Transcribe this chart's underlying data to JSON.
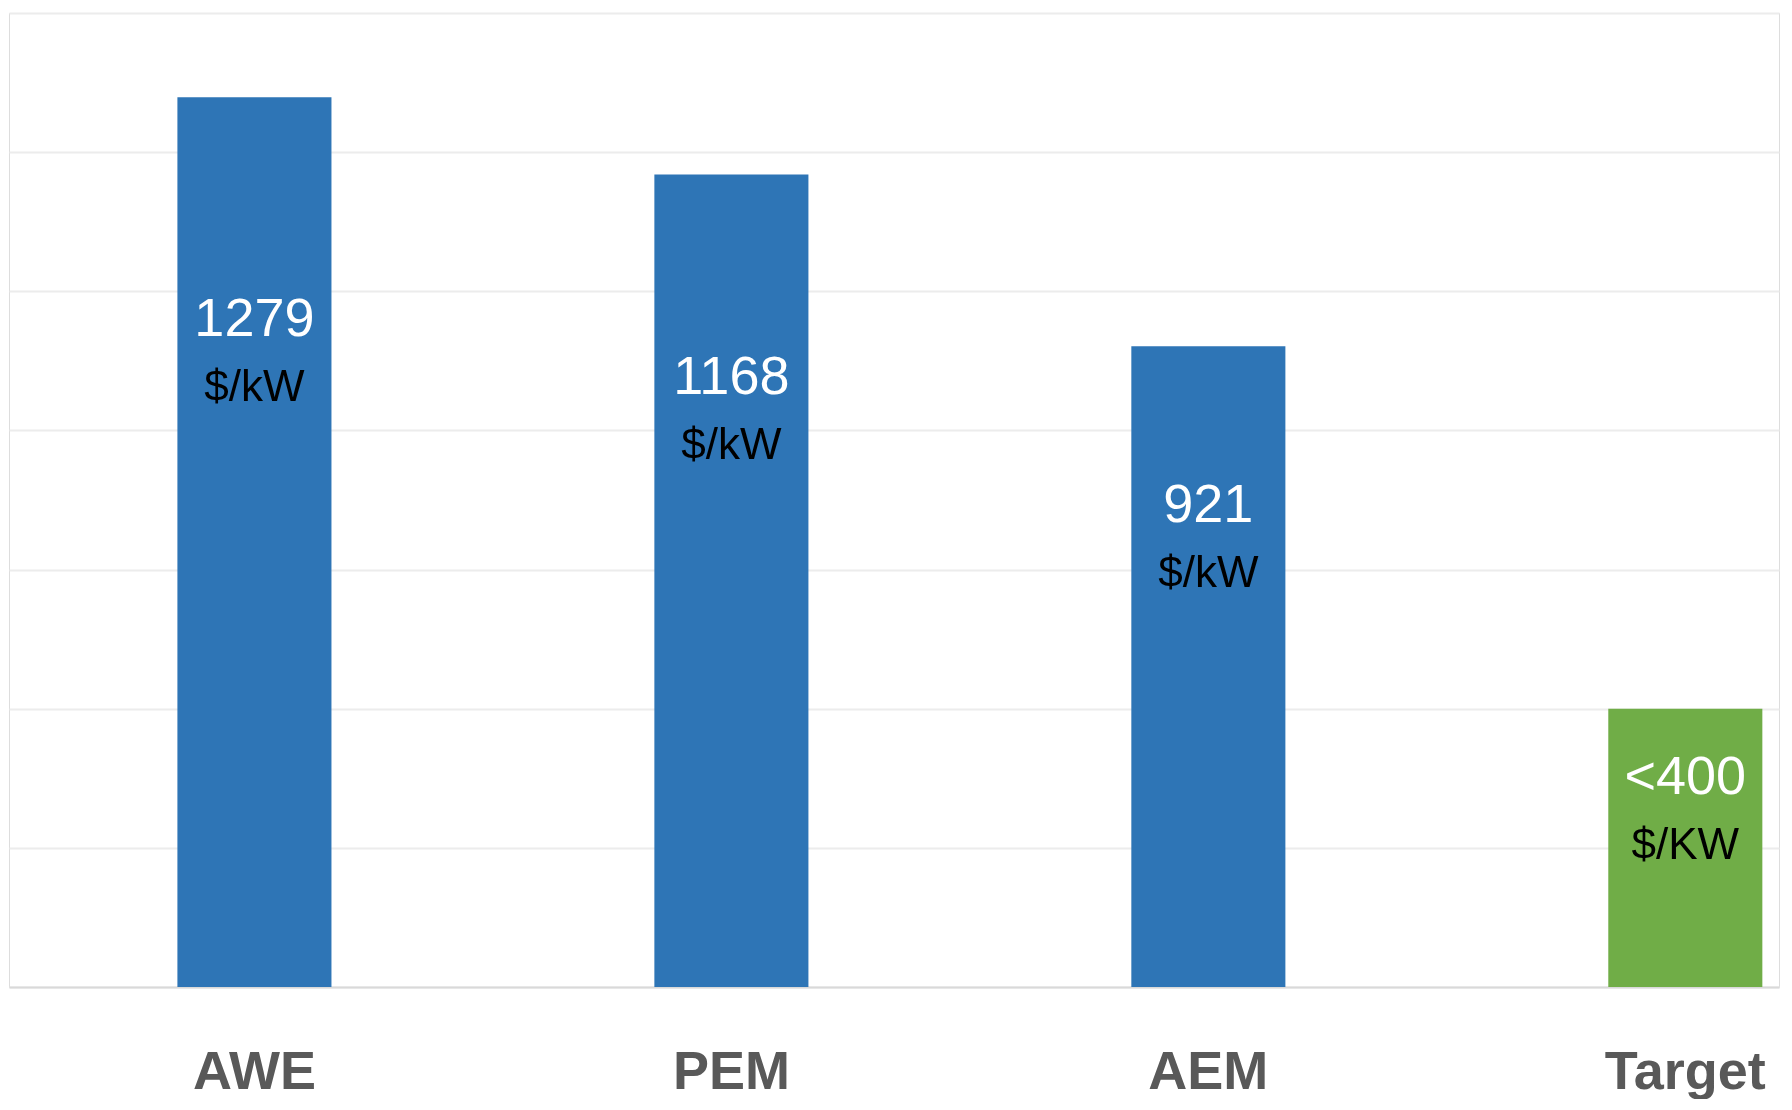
{
  "chart_data": {
    "type": "bar",
    "categories": [
      "AWE",
      "PEM",
      "AEM",
      "Target"
    ],
    "values": [
      1279,
      1168,
      921,
      400
    ],
    "colors": [
      "#2e75b6",
      "#2e75b6",
      "#2e75b6",
      "#70ad47"
    ],
    "value_labels": [
      "1279",
      "1168",
      "921",
      "<400"
    ],
    "annotations": [
      "$/kW",
      "$/kW",
      "$/kW",
      "$/KW"
    ],
    "ylim": [
      0,
      1400
    ],
    "yticks": [
      {
        "value": 0,
        "label": null
      },
      {
        "value": 200,
        "label": null
      },
      {
        "value": 400,
        "label": null
      },
      {
        "value": 600,
        "label": null
      },
      {
        "value": 800,
        "label": null
      },
      {
        "value": 1000,
        "label": null
      },
      {
        "value": 1200,
        "label": null
      },
      {
        "value": 1400,
        "label": null
      }
    ],
    "grid": "y",
    "tick_labels": "x"
  }
}
